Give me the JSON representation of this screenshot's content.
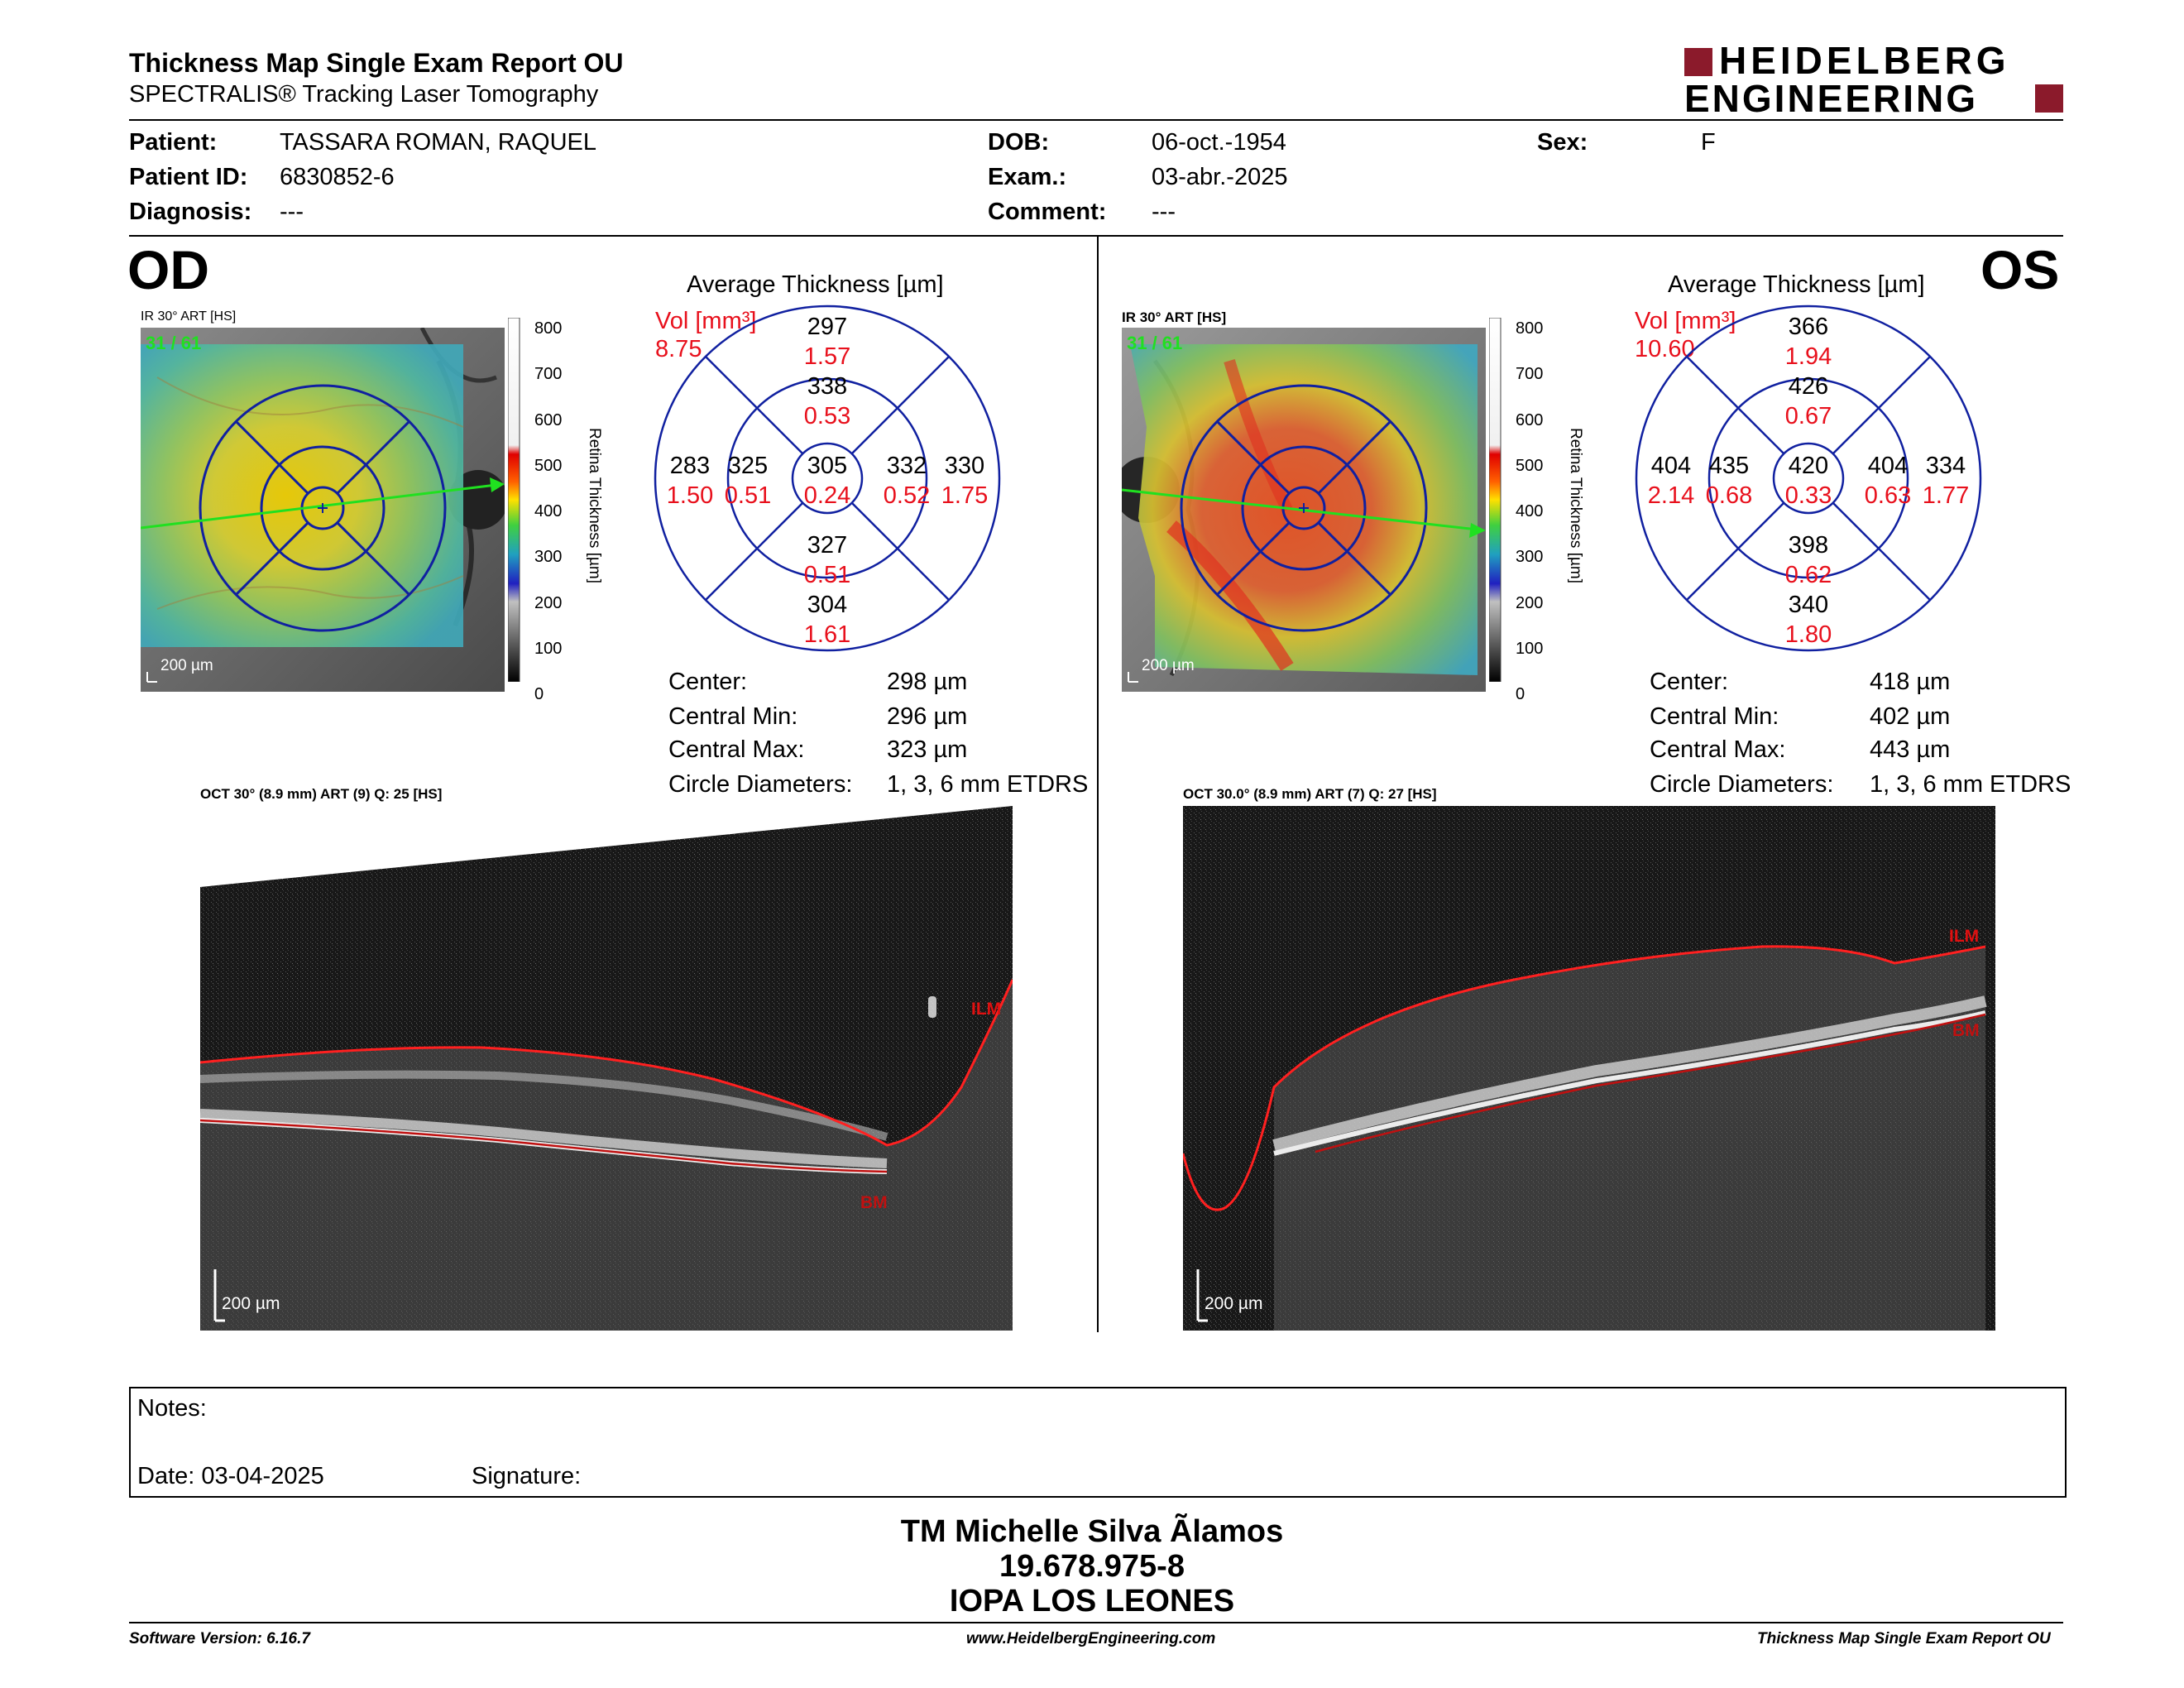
{
  "header": {
    "title": "Thickness Map Single Exam Report OU",
    "subtitle": "SPECTRALIS® Tracking Laser Tomography",
    "brand_line1": "HEIDELBERG",
    "brand_line2": "ENGINEERING",
    "brand_color": "#8b1a2b"
  },
  "patient": {
    "patient_label": "Patient:",
    "patient_value": "TASSARA ROMAN, RAQUEL",
    "id_label": "Patient ID:",
    "id_value": "6830852-6",
    "diagnosis_label": "Diagnosis:",
    "diagnosis_value": "---",
    "dob_label": "DOB:",
    "dob_value": "06-oct.-1954",
    "exam_label": "Exam.:",
    "exam_value": "03-abr.-2025",
    "comment_label": "Comment:",
    "comment_value": "---",
    "sex_label": "Sex:",
    "sex_value": "F"
  },
  "colorbar": {
    "ticks": [
      "800",
      "700",
      "600",
      "500",
      "400",
      "300",
      "200",
      "100",
      "0"
    ],
    "label": "Retina Thickness [µm]"
  },
  "od": {
    "eye": "OD",
    "ir_title": "IR 30° ART [HS]",
    "frame": "31 / 61",
    "scale": "200 µm",
    "avg_title": "Average Thickness [µm]",
    "vol_label": "Vol [mm³]",
    "vol_value": "8.75",
    "sectors": {
      "outer_sup": {
        "t": "297",
        "v": "1.57"
      },
      "inner_sup": {
        "t": "338",
        "v": "0.53"
      },
      "outer_nas_l": {
        "t": "283",
        "v": "1.50"
      },
      "inner_l": {
        "t": "325",
        "v": "0.51"
      },
      "center": {
        "t": "305",
        "v": "0.24"
      },
      "inner_r": {
        "t": "332",
        "v": "0.52"
      },
      "outer_r": {
        "t": "330",
        "v": "1.75"
      },
      "inner_inf": {
        "t": "327",
        "v": "0.51"
      },
      "outer_inf": {
        "t": "304",
        "v": "1.61"
      }
    },
    "stats": {
      "center_label": "Center:",
      "center": "298 µm",
      "min_label": "Central Min:",
      "min": "296 µm",
      "max_label": "Central Max:",
      "max": "323 µm",
      "circ_label": "Circle Diameters:",
      "circ": "1, 3, 6 mm ETDRS"
    },
    "oct_title": "OCT 30° (8.9 mm) ART (9) Q: 25 [HS]",
    "oct_scale": "200 µm",
    "ilm": "ILM",
    "bm": "BM"
  },
  "os": {
    "eye": "OS",
    "ir_title": "IR 30° ART [HS]",
    "frame": "31 / 61",
    "scale": "200 µm",
    "avg_title": "Average Thickness [µm]",
    "vol_label": "Vol [mm³]",
    "vol_value": "10.60",
    "sectors": {
      "outer_sup": {
        "t": "366",
        "v": "1.94"
      },
      "inner_sup": {
        "t": "426",
        "v": "0.67"
      },
      "outer_nas_l": {
        "t": "404",
        "v": "2.14"
      },
      "inner_l": {
        "t": "435",
        "v": "0.68"
      },
      "center": {
        "t": "420",
        "v": "0.33"
      },
      "inner_r": {
        "t": "404",
        "v": "0.63"
      },
      "outer_r": {
        "t": "334",
        "v": "1.77"
      },
      "inner_inf": {
        "t": "398",
        "v": "0.62"
      },
      "outer_inf": {
        "t": "340",
        "v": "1.80"
      }
    },
    "stats": {
      "center_label": "Center:",
      "center": "418 µm",
      "min_label": "Central Min:",
      "min": "402 µm",
      "max_label": "Central Max:",
      "max": "443 µm",
      "circ_label": "Circle Diameters:",
      "circ": "1, 3, 6 mm ETDRS"
    },
    "oct_title": "OCT 30.0° (8.9 mm) ART (7) Q: 27 [HS]",
    "oct_scale": "200 µm",
    "ilm": "ILM",
    "bm": "BM"
  },
  "notes": {
    "notes_label": "Notes:",
    "date_label": "Date: 03-04-2025",
    "signature_label": "Signature:"
  },
  "signature": {
    "line1": "TM Michelle Silva Ãlamos",
    "line2": "19.678.975-8",
    "line3": "IOPA LOS LEONES"
  },
  "footer": {
    "software": "Software Version: 6.16.7",
    "url": "www.HeidelbergEngineering.com",
    "report": "Thickness Map Single Exam Report OU"
  }
}
